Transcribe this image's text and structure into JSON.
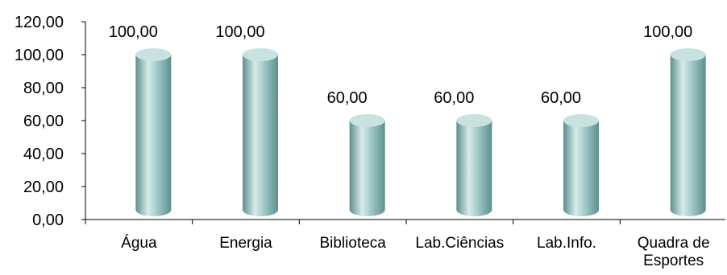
{
  "chart_data": {
    "type": "bar",
    "categories": [
      "Água",
      "Energia",
      "Biblioteca",
      "Lab.Ciências",
      "Lab.Info.",
      "Quadra de Esportes"
    ],
    "category_label_lines": [
      [
        "Água"
      ],
      [
        "Energia"
      ],
      [
        "Biblioteca"
      ],
      [
        "Lab.Ciências"
      ],
      [
        "Lab.Info."
      ],
      [
        "Quadra de",
        "Esportes"
      ]
    ],
    "values": [
      100,
      100,
      60,
      60,
      60,
      100
    ],
    "data_labels": [
      "100,00",
      "100,00",
      "60,00",
      "60,00",
      "60,00",
      "100,00"
    ],
    "y_ticks": [
      0,
      20,
      40,
      60,
      80,
      100,
      120
    ],
    "y_tick_labels": [
      "0,00",
      "20,00",
      "40,00",
      "60,00",
      "80,00",
      "100,00",
      "120,00"
    ],
    "ylim": [
      0,
      120
    ],
    "grid": false,
    "legend": "none",
    "bar_shape": "cylinder",
    "colors": {
      "bar_body": "#8fbcbb",
      "bar_highlight": "#d7ecea",
      "bar_shadow": "#5d8f8d",
      "bar_top": "#c8e2e0",
      "axis": "#000000"
    }
  }
}
